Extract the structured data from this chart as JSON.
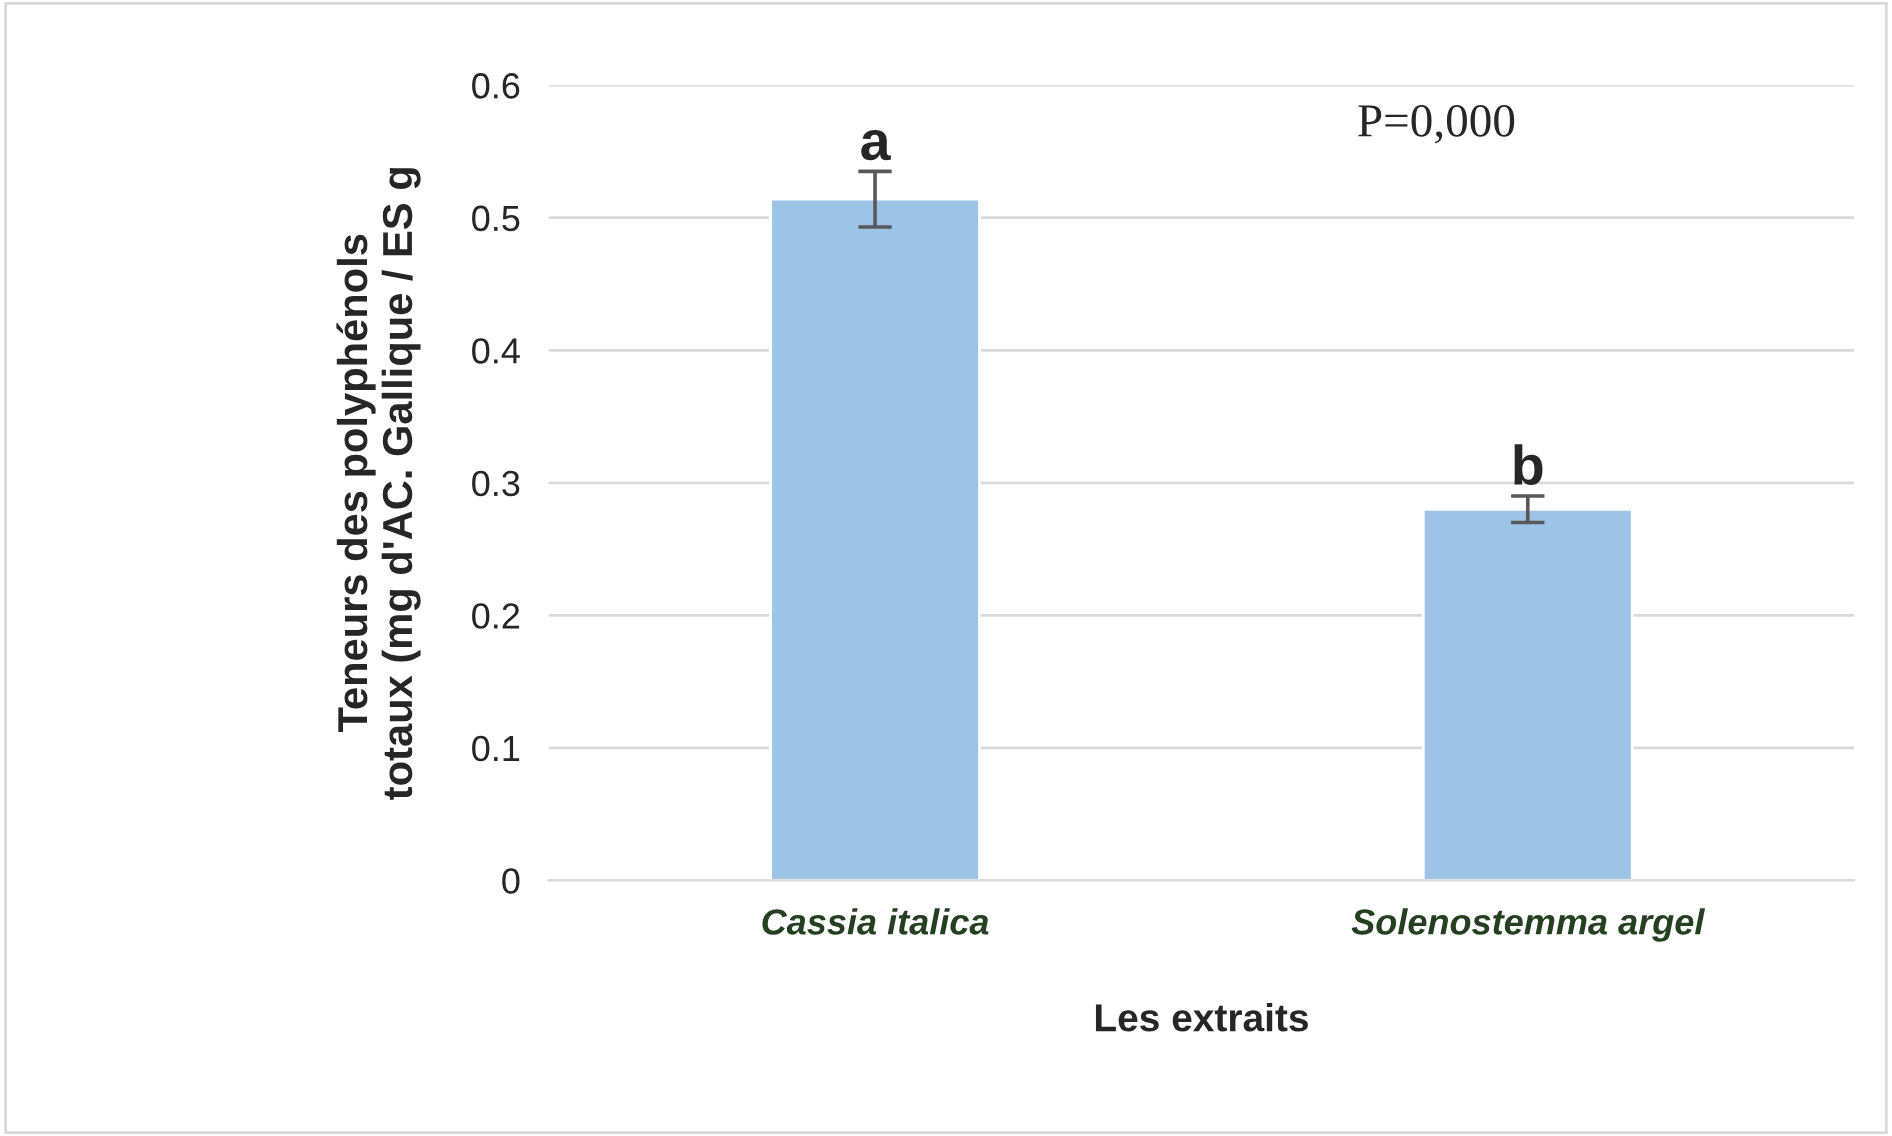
{
  "chart_data": {
    "type": "bar",
    "xlabel": "Les extraits",
    "ylabel": "Teneurs des polyphénols\ntotaux (mg d'AC. Gallique / ES g",
    "categories": [
      "Cassia italica",
      "Solenostemma argel"
    ],
    "values": [
      0.514,
      0.28
    ],
    "errors": [
      0.021,
      0.01
    ],
    "color": "#9dc3e6",
    "ylim": [
      0,
      0.6
    ],
    "yticks": [
      0,
      0.1,
      0.2,
      0.3,
      0.4,
      0.5,
      0.6
    ],
    "grid": "y",
    "annotations": [
      {
        "text": "a",
        "x": "Cassia italica",
        "y": 0.535
      },
      {
        "text": "b",
        "x": "Solenostemma argel",
        "y": 0.29
      },
      "P=0,000"
    ]
  }
}
